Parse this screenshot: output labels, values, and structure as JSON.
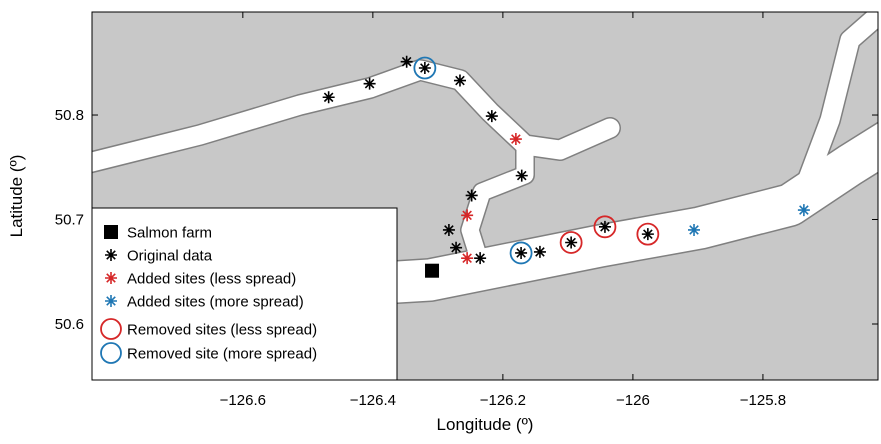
{
  "chart_data": {
    "type": "scatter",
    "xlabel": "Longitude (º)",
    "ylabel": "Latitude (º)",
    "xlim": [
      -126.832,
      -125.623
    ],
    "ylim": [
      50.5464,
      50.8986
    ],
    "xticks": [
      {
        "value": -126.6,
        "label": "−126.6"
      },
      {
        "value": -126.4,
        "label": "−126.4"
      },
      {
        "value": -126.2,
        "label": "−126.2"
      },
      {
        "value": -126,
        "label": "−126"
      },
      {
        "value": -125.8,
        "label": "−125.8"
      }
    ],
    "yticks": [
      50.6,
      50.7,
      50.8
    ],
    "legend": "lower left",
    "land_color": "#c8c8c8",
    "series": [
      {
        "name": "Salmon farm",
        "color": "#000000",
        "marker": "square",
        "x": [
          -126.309
        ],
        "y": [
          50.651
        ]
      },
      {
        "name": "Original data",
        "color": "#000000",
        "marker": "asterisk",
        "x": [
          -126.468,
          -126.405,
          -126.348,
          -126.32,
          -126.266,
          -126.217,
          -126.171,
          -126.248,
          -126.283,
          -126.272,
          -126.235,
          -126.172,
          -126.143,
          -126.095,
          -126.043,
          -125.977
        ],
        "y": [
          50.817,
          50.83,
          50.851,
          50.845,
          50.833,
          50.799,
          50.742,
          50.723,
          50.69,
          50.673,
          50.663,
          50.668,
          50.669,
          50.678,
          50.693,
          50.686
        ]
      },
      {
        "name": "Added sites (less spread)",
        "color": "#d62728",
        "marker": "asterisk",
        "x": [
          -126.18,
          -126.255,
          -126.255
        ],
        "y": [
          50.777,
          50.704,
          50.663
        ]
      },
      {
        "name": "Added sites (more spread)",
        "color": "#1f77b4",
        "marker": "asterisk",
        "x": [
          -125.906,
          -125.737
        ],
        "y": [
          50.69,
          50.709
        ]
      },
      {
        "name": "Removed sites (less spread)",
        "color": "#d62728",
        "marker": "circle",
        "x": [
          -126.095,
          -126.043,
          -125.977
        ],
        "y": [
          50.678,
          50.693,
          50.686
        ]
      },
      {
        "name": "Removed site (more spread)",
        "color": "#1f77b4",
        "marker": "circle",
        "x": [
          -126.32,
          -126.172
        ],
        "y": [
          50.845,
          50.668
        ]
      }
    ]
  }
}
